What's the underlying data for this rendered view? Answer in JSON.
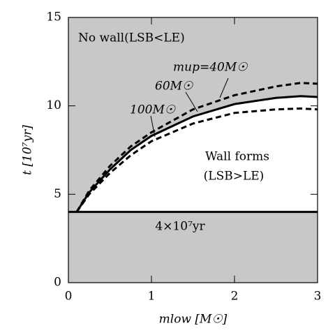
{
  "chart_data": {
    "type": "line",
    "x_label": "mlow [M☉]",
    "y_label": "t  [10⁷yr]",
    "x": [
      0.1,
      0.25,
      0.5,
      0.75,
      1,
      1.5,
      2,
      2.5,
      2.8,
      3
    ],
    "series": [
      {
        "name": "mup=40M☉",
        "color": "#000000",
        "dash": true,
        "values": [
          4,
          5.2,
          6.6,
          7.7,
          8.5,
          9.8,
          10.6,
          11.1,
          11.3,
          11.25
        ]
      },
      {
        "name": "60M☉",
        "color": "#000000",
        "dash": false,
        "values": [
          4,
          5.1,
          6.4,
          7.5,
          8.3,
          9.4,
          10.1,
          10.45,
          10.55,
          10.5
        ]
      },
      {
        "name": "100M☉",
        "color": "#000000",
        "dash": true,
        "values": [
          4,
          5.0,
          6.2,
          7.2,
          8.0,
          9.0,
          9.6,
          9.8,
          9.85,
          9.8
        ]
      }
    ],
    "threshold": 4,
    "annotations": [
      "No wall(LSB<LE)",
      "Wall forms",
      "(LSB>LE)",
      "4×10⁷yr"
    ],
    "xlim": [
      0,
      3
    ],
    "xticks": [
      0,
      1,
      2,
      3
    ],
    "ylim": [
      0,
      15
    ],
    "yticks": [
      0,
      5,
      10,
      15
    ]
  }
}
